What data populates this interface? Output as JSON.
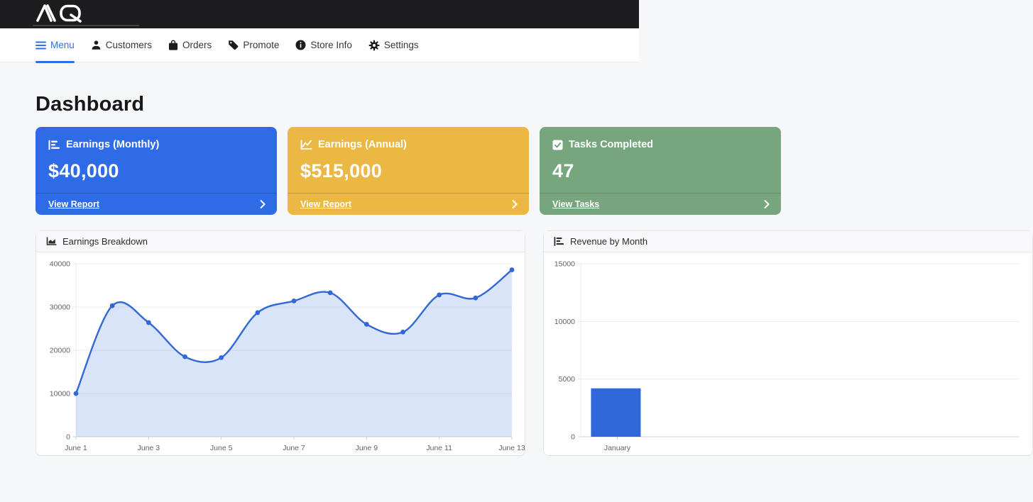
{
  "theme": {
    "accent_blue": "#2e6fe4",
    "header_bg": "#1d1d1f",
    "page_bg": "#f6f7f9",
    "chart_blue": "#3168d9"
  },
  "header": {
    "brand": "AQ"
  },
  "nav": {
    "items": [
      {
        "label": "Menu",
        "icon": "hamburger-icon",
        "active": true
      },
      {
        "label": "Customers",
        "icon": "person-icon",
        "active": false
      },
      {
        "label": "Orders",
        "icon": "shopping-bag-icon",
        "active": false
      },
      {
        "label": "Promote",
        "icon": "tag-icon",
        "active": false
      },
      {
        "label": "Store Info",
        "icon": "info-circle-icon",
        "active": false
      },
      {
        "label": "Settings",
        "icon": "gear-icon",
        "active": false
      }
    ]
  },
  "page": {
    "title": "Dashboard"
  },
  "stat_cards": [
    {
      "title": "Earnings (Monthly)",
      "value": "$40,000",
      "link_label": "View Report",
      "color": "#2d6ce6",
      "icon": "bar-chart-icon"
    },
    {
      "title": "Earnings (Annual)",
      "value": "$515,000",
      "link_label": "View Report",
      "color": "#ecb844",
      "icon": "line-chart-icon"
    },
    {
      "title": "Tasks Completed",
      "value": "47",
      "link_label": "View Tasks",
      "color": "#77a67e",
      "icon": "check-square-icon"
    }
  ],
  "chart_data": [
    {
      "type": "area",
      "title": "Earnings Breakdown",
      "x_tick_labels": [
        "June 1",
        "June 3",
        "June 5",
        "June 7",
        "June 9",
        "June 11",
        "June 13"
      ],
      "values": [
        10000,
        30300,
        26400,
        18500,
        18300,
        28700,
        31400,
        33300,
        26000,
        24200,
        32800,
        32100,
        38600
      ],
      "ylim": [
        0,
        40000
      ],
      "yticks": [
        0,
        10000,
        20000,
        30000,
        40000
      ],
      "line_color": "#3168d9",
      "fill_color": "rgba(49,104,217,0.18)",
      "grid": true,
      "legend": false
    },
    {
      "type": "bar",
      "title": "Revenue by Month",
      "categories": [
        "January"
      ],
      "values": [
        4200
      ],
      "ylim": [
        0,
        15000
      ],
      "yticks": [
        0,
        5000,
        10000,
        15000
      ],
      "bar_color": "#3168d9",
      "category_slots": 6,
      "grid": true,
      "legend": false
    }
  ]
}
